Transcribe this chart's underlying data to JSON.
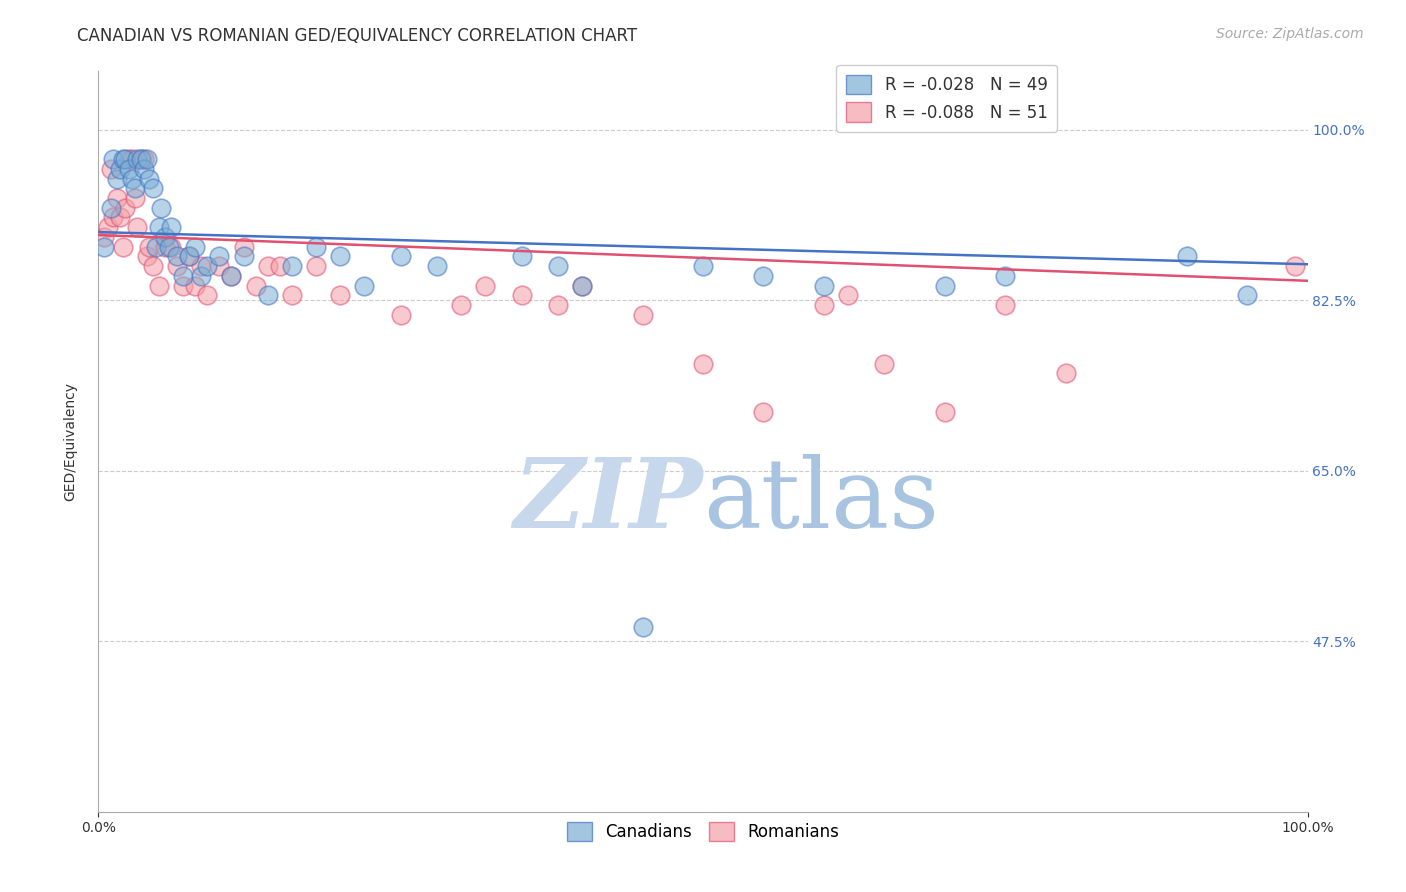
{
  "title": "CANADIAN VS ROMANIAN GED/EQUIVALENCY CORRELATION CHART",
  "source": "Source: ZipAtlas.com",
  "ylabel": "GED/Equivalency",
  "xlabel": "",
  "xlim": [
    0.0,
    1.0
  ],
  "ylim": [
    0.3,
    1.06
  ],
  "ytick_positions": [
    1.0,
    0.825,
    0.65,
    0.475
  ],
  "ytick_labels": [
    "100.0%",
    "82.5%",
    "65.0%",
    "47.5%"
  ],
  "xtick_positions": [
    0.0,
    1.0
  ],
  "xtick_labels": [
    "0.0%",
    "100.0%"
  ],
  "legend_r_canadian": "-0.028",
  "legend_n_canadian": "49",
  "legend_r_romanian": "-0.088",
  "legend_n_romanian": "51",
  "canadian_color": "#7BAFD4",
  "romanian_color": "#F4A0A8",
  "line_canadian_color": "#4472C4",
  "line_romanian_color": "#E05070",
  "watermark_zip": "ZIP",
  "watermark_atlas": "atlas",
  "watermark_color_zip": "#C8D8EC",
  "watermark_color_atlas": "#A8C4E0",
  "background_color": "#ffffff",
  "grid_color": "#cccccc",
  "title_fontsize": 12,
  "axis_label_fontsize": 10,
  "tick_fontsize": 10,
  "legend_fontsize": 12,
  "source_fontsize": 10,
  "canadian_points_x": [
    0.005,
    0.01,
    0.012,
    0.015,
    0.018,
    0.02,
    0.022,
    0.025,
    0.028,
    0.03,
    0.032,
    0.035,
    0.038,
    0.04,
    0.042,
    0.045,
    0.048,
    0.05,
    0.052,
    0.055,
    0.058,
    0.06,
    0.065,
    0.07,
    0.075,
    0.08,
    0.085,
    0.09,
    0.1,
    0.11,
    0.12,
    0.14,
    0.16,
    0.18,
    0.2,
    0.22,
    0.25,
    0.28,
    0.35,
    0.38,
    0.4,
    0.45,
    0.5,
    0.55,
    0.6,
    0.7,
    0.75,
    0.9,
    0.95
  ],
  "canadian_points_y": [
    0.88,
    0.92,
    0.97,
    0.95,
    0.96,
    0.97,
    0.97,
    0.96,
    0.95,
    0.94,
    0.97,
    0.97,
    0.96,
    0.97,
    0.95,
    0.94,
    0.88,
    0.9,
    0.92,
    0.89,
    0.88,
    0.9,
    0.87,
    0.85,
    0.87,
    0.88,
    0.85,
    0.86,
    0.87,
    0.85,
    0.87,
    0.83,
    0.86,
    0.88,
    0.87,
    0.84,
    0.87,
    0.86,
    0.87,
    0.86,
    0.84,
    0.49,
    0.86,
    0.85,
    0.84,
    0.84,
    0.85,
    0.87,
    0.83
  ],
  "romanian_points_x": [
    0.005,
    0.008,
    0.01,
    0.012,
    0.015,
    0.018,
    0.02,
    0.022,
    0.025,
    0.028,
    0.03,
    0.032,
    0.035,
    0.038,
    0.04,
    0.042,
    0.045,
    0.05,
    0.055,
    0.06,
    0.065,
    0.07,
    0.075,
    0.08,
    0.085,
    0.09,
    0.1,
    0.11,
    0.12,
    0.13,
    0.14,
    0.15,
    0.16,
    0.18,
    0.2,
    0.25,
    0.3,
    0.32,
    0.35,
    0.38,
    0.4,
    0.45,
    0.5,
    0.55,
    0.6,
    0.62,
    0.65,
    0.7,
    0.75,
    0.8,
    0.99
  ],
  "romanian_points_y": [
    0.89,
    0.9,
    0.96,
    0.91,
    0.93,
    0.91,
    0.88,
    0.92,
    0.97,
    0.97,
    0.93,
    0.9,
    0.97,
    0.97,
    0.87,
    0.88,
    0.86,
    0.84,
    0.88,
    0.88,
    0.86,
    0.84,
    0.87,
    0.84,
    0.86,
    0.83,
    0.86,
    0.85,
    0.88,
    0.84,
    0.86,
    0.86,
    0.83,
    0.86,
    0.83,
    0.81,
    0.82,
    0.84,
    0.83,
    0.82,
    0.84,
    0.81,
    0.76,
    0.71,
    0.82,
    0.83,
    0.76,
    0.71,
    0.82,
    0.75,
    0.86
  ]
}
